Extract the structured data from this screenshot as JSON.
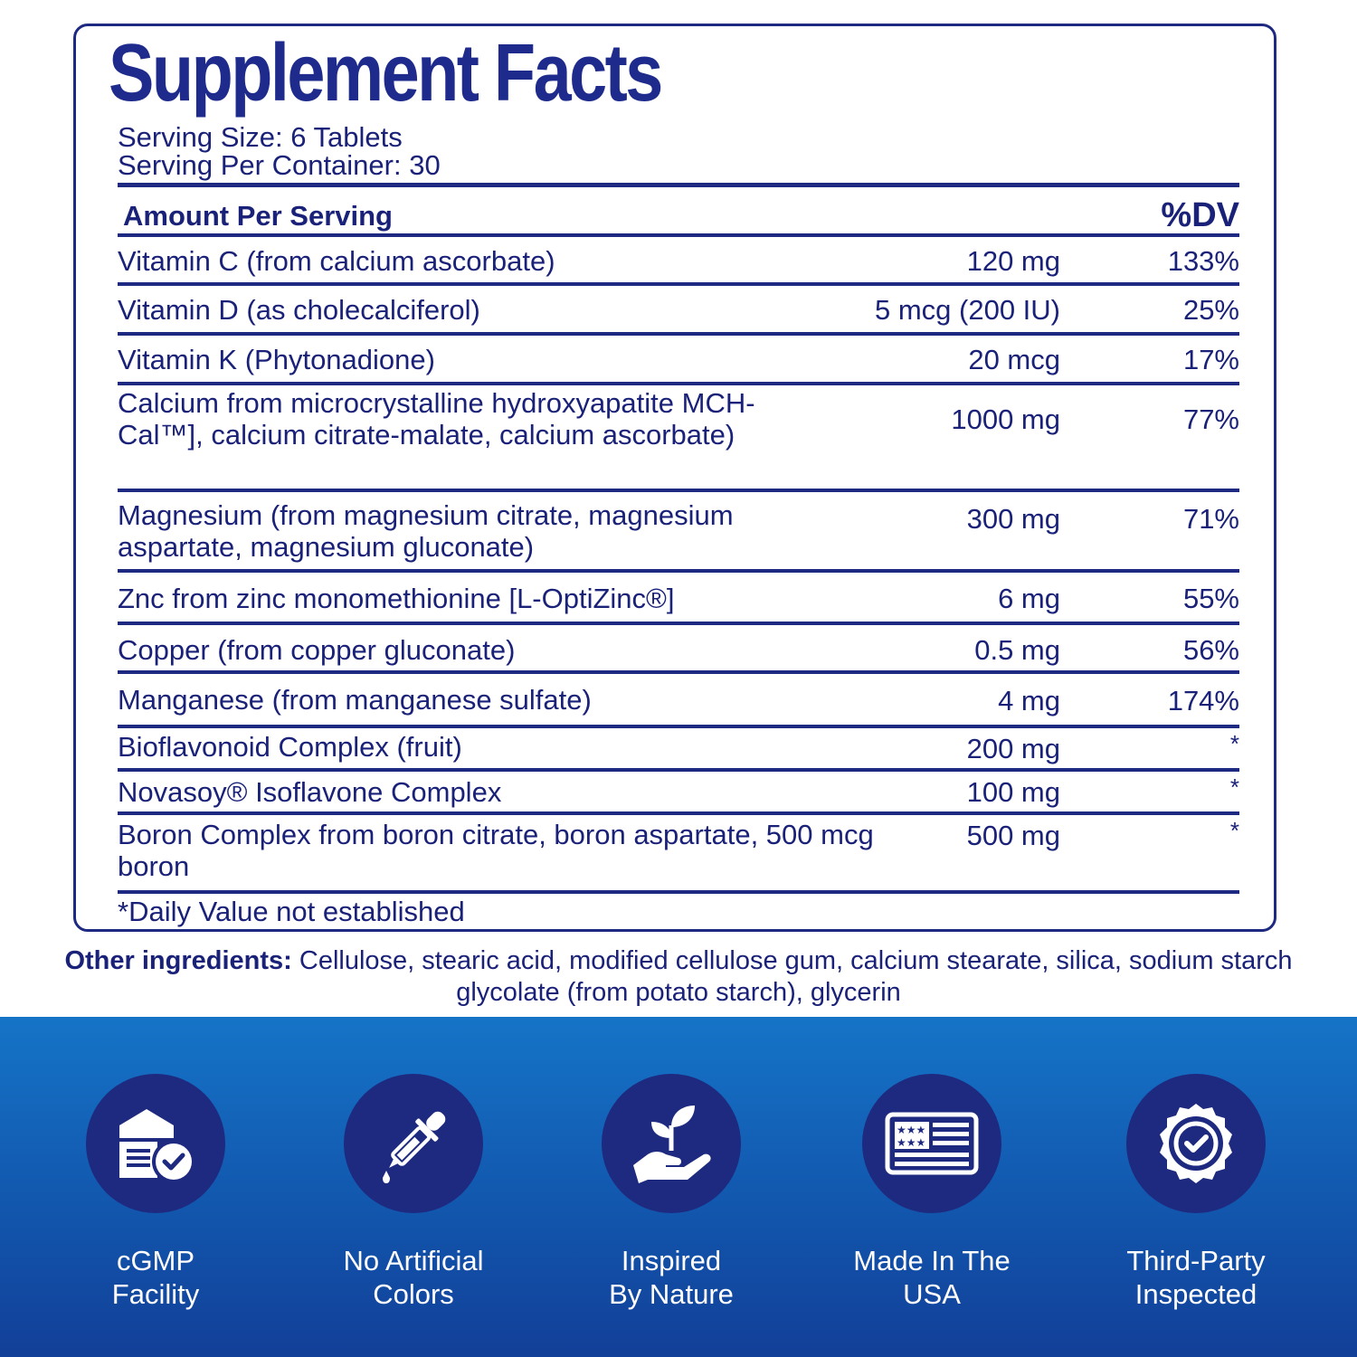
{
  "title": "Supplement Facts",
  "serving": {
    "size": "Serving Size: 6 Tablets",
    "per_container": "Serving Per Container: 30"
  },
  "table_header": {
    "amount_label": "Amount Per Serving",
    "dv_label": "%DV"
  },
  "rows": [
    {
      "name": "Vitamin C (from calcium ascorbate)",
      "amount": "120 mg",
      "dv": "133%"
    },
    {
      "name": "Vitamin D (as cholecalciferol)",
      "amount": "5 mcg (200 IU)",
      "dv": "25%"
    },
    {
      "name": "Vitamin K (Phytonadione)",
      "amount": "20 mcg",
      "dv": "17%"
    },
    {
      "name": "Calcium from microcrystalline hydroxyapatite MCH-Cal™], calcium citrate-malate, calcium ascorbate)",
      "amount": "1000 mg",
      "dv": "77%"
    },
    {
      "name": "Magnesium (from magnesium citrate, magnesium aspartate, magnesium gluconate)",
      "amount": "300 mg",
      "dv": "71%"
    },
    {
      "name": "Znc from zinc monomethionine [L-OptiZinc®]",
      "amount": "6 mg",
      "dv": "55%"
    },
    {
      "name": "Copper (from copper gluconate)",
      "amount": "0.5 mg",
      "dv": "56%"
    },
    {
      "name": "Manganese (from manganese sulfate)",
      "amount": "4 mg",
      "dv": "174%"
    },
    {
      "name": "Bioflavonoid Complex (fruit)",
      "amount": "200 mg",
      "dv": "*"
    },
    {
      "name": "Novasoy® Isoflavone Complex",
      "amount": "100 mg",
      "dv": "*"
    },
    {
      "name": "Boron Complex from boron citrate, boron aspartate, 500 mcg boron",
      "amount": "500 mg",
      "dv": "*"
    }
  ],
  "footnote": "*Daily Value not established",
  "other_ingredients": {
    "label": "Other ingredients:",
    "text": "Cellulose, stearic acid, modified cellulose gum, calcium stearate, silica, sodium starch glycolate (from potato starch), glycerin"
  },
  "badges": [
    {
      "icon": "facility-check-icon",
      "line1": "cGMP",
      "line2": "Facility"
    },
    {
      "icon": "dropper-icon",
      "line1": "No Artificial",
      "line2": "Colors"
    },
    {
      "icon": "plant-hand-icon",
      "line1": "Inspired",
      "line2": "By Nature"
    },
    {
      "icon": "usa-flag-icon",
      "line1": "Made In The",
      "line2": "USA"
    },
    {
      "icon": "seal-check-icon",
      "line1": "Third-Party",
      "line2": "Inspected"
    }
  ],
  "colors": {
    "navy": "#1e2a82",
    "blue_band": "#1257ae",
    "badge_circle": "#1e2a80",
    "white": "#ffffff"
  }
}
